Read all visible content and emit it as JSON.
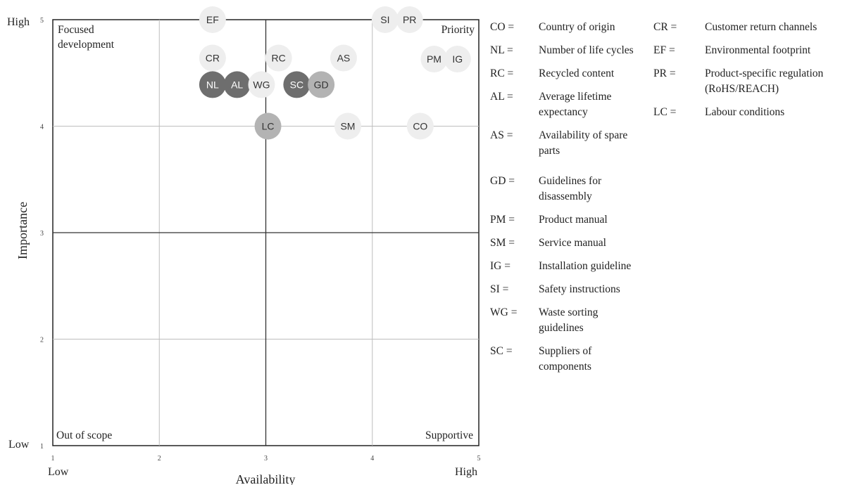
{
  "chart_data": {
    "type": "scatter",
    "title": "",
    "xlabel": "Availability",
    "ylabel": "Importance",
    "xlim": [
      1,
      5
    ],
    "ylim": [
      1,
      5
    ],
    "x_ticks": [
      "1",
      "2",
      "3",
      "4",
      "5"
    ],
    "y_ticks": [
      "1",
      "2",
      "3",
      "4",
      "5"
    ],
    "x_low_label": "Low",
    "x_high_label": "High",
    "y_low_label": "Low",
    "y_high_label": "High",
    "quadrant_dividers": {
      "x": 3,
      "y": 3
    },
    "quadrants": {
      "top_left": "Focused development",
      "top_right": "Priority",
      "bottom_left": "Out of scope",
      "bottom_right": "Supportive"
    },
    "grid": true,
    "shade_colors": {
      "light": "#eeeeee",
      "medium": "#b3b3b3",
      "dark": "#6e6e6e"
    },
    "points": [
      {
        "label": "EF",
        "x": 2.5,
        "y": 5.0,
        "shade": "light"
      },
      {
        "label": "SI",
        "x": 4.12,
        "y": 5.0,
        "shade": "light"
      },
      {
        "label": "PR",
        "x": 4.35,
        "y": 5.0,
        "shade": "light"
      },
      {
        "label": "CR",
        "x": 2.5,
        "y": 4.64,
        "shade": "light"
      },
      {
        "label": "RC",
        "x": 3.12,
        "y": 4.64,
        "shade": "light"
      },
      {
        "label": "AS",
        "x": 3.73,
        "y": 4.64,
        "shade": "light"
      },
      {
        "label": "PM",
        "x": 4.58,
        "y": 4.63,
        "shade": "light"
      },
      {
        "label": "IG",
        "x": 4.8,
        "y": 4.63,
        "shade": "light"
      },
      {
        "label": "NL",
        "x": 2.5,
        "y": 4.39,
        "shade": "dark"
      },
      {
        "label": "AL",
        "x": 2.73,
        "y": 4.39,
        "shade": "dark"
      },
      {
        "label": "WG",
        "x": 2.96,
        "y": 4.39,
        "shade": "light"
      },
      {
        "label": "SC",
        "x": 3.29,
        "y": 4.39,
        "shade": "dark"
      },
      {
        "label": "GD",
        "x": 3.52,
        "y": 4.39,
        "shade": "medium"
      },
      {
        "label": "LC",
        "x": 3.02,
        "y": 4.0,
        "shade": "medium"
      },
      {
        "label": "SM",
        "x": 3.77,
        "y": 4.0,
        "shade": "light"
      },
      {
        "label": "CO",
        "x": 4.45,
        "y": 4.0,
        "shade": "light"
      }
    ]
  },
  "legend": [
    {
      "code": "CO =",
      "text": "Country of origin"
    },
    {
      "code": "NL =",
      "text": "Number of life cycles"
    },
    {
      "code": "RC =",
      "text": "Recycled content"
    },
    {
      "code": "AL =",
      "text": "Average lifetime expectancy"
    },
    {
      "code": "AS =",
      "text": "Availability of spare parts"
    },
    {
      "code": "GD =",
      "text": "Guidelines for disassembly"
    },
    {
      "code": "PM =",
      "text": "Product manual"
    },
    {
      "code": "SM =",
      "text": "Service manual"
    },
    {
      "code": "IG =",
      "text": "Installation guideline"
    },
    {
      "code": "SI =",
      "text": "Safety instructions"
    },
    {
      "code": "WG =",
      "text": "Waste sorting guidelines"
    },
    {
      "code": "SC =",
      "text": "Suppliers of components"
    },
    {
      "code": "CR =",
      "text": "Customer return channels"
    },
    {
      "code": "EF =",
      "text": "Environmental footprint"
    },
    {
      "code": "PR =",
      "text": "Product-specific regulation (RoHS/REACH)"
    },
    {
      "code": "LC =",
      "text": "Labour conditions"
    }
  ]
}
